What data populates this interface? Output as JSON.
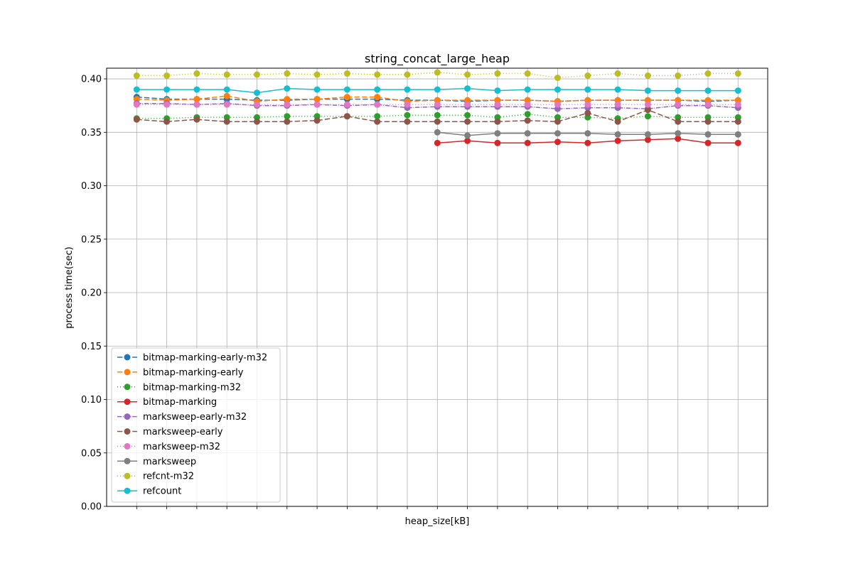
{
  "chart_data": {
    "type": "line",
    "title": "string_concat_large_heap",
    "xlabel": "heap_size[kB]",
    "ylabel": "process time(sec)",
    "ylim": [
      0,
      0.41
    ],
    "yticks": [
      "0.00",
      "0.05",
      "0.10",
      "0.15",
      "0.20",
      "0.25",
      "0.30",
      "0.35",
      "0.40"
    ],
    "x_count": 21,
    "x_tick_labels_visible": false,
    "grid": true,
    "legend_position": "lower-left",
    "series": [
      {
        "name": "bitmap-marking-early-m32",
        "color": "#1f77b4",
        "dash": "7.4,3.2",
        "values": [
          0.383,
          0.381,
          0.381,
          0.381,
          0.38,
          0.38,
          0.381,
          0.381,
          0.381,
          0.38,
          0.38,
          0.379,
          0.38,
          0.38,
          0.379,
          0.38,
          0.38,
          0.38,
          0.38,
          0.379,
          0.38
        ]
      },
      {
        "name": "bitmap-marking-early",
        "color": "#ff7f0e",
        "dash": "7.4,3.2",
        "values": [
          0.381,
          0.38,
          0.381,
          0.384,
          0.379,
          0.381,
          0.381,
          0.383,
          0.383,
          0.379,
          0.38,
          0.38,
          0.38,
          0.38,
          0.379,
          0.38,
          0.38,
          0.38,
          0.38,
          0.38,
          0.38
        ]
      },
      {
        "name": "bitmap-marking-m32",
        "color": "#2ca02c",
        "dash": "1,3",
        "values": [
          0.363,
          0.363,
          0.364,
          0.364,
          0.364,
          0.365,
          0.365,
          0.365,
          0.365,
          0.366,
          0.366,
          0.366,
          0.364,
          0.367,
          0.364,
          0.364,
          0.363,
          0.365,
          0.364,
          0.364,
          0.364
        ]
      },
      {
        "name": "bitmap-marking",
        "color": "#d62728",
        "dash": "",
        "start": 10,
        "values": [
          0.34,
          0.342,
          0.34,
          0.34,
          0.341,
          0.34,
          0.342,
          0.343,
          0.344,
          0.34,
          0.34
        ]
      },
      {
        "name": "marksweep-early-m32",
        "color": "#9467bd",
        "dash": "6.4,1.6,1,1.6",
        "values": [
          0.377,
          0.377,
          0.376,
          0.377,
          0.375,
          0.375,
          0.376,
          0.375,
          0.376,
          0.373,
          0.374,
          0.374,
          0.374,
          0.374,
          0.372,
          0.373,
          0.373,
          0.372,
          0.375,
          0.375,
          0.373
        ]
      },
      {
        "name": "marksweep-early",
        "color": "#8c564b",
        "dash": "7.4,3.2",
        "values": [
          0.362,
          0.36,
          0.362,
          0.36,
          0.36,
          0.36,
          0.361,
          0.365,
          0.36,
          0.36,
          0.36,
          0.36,
          0.36,
          0.361,
          0.36,
          0.368,
          0.36,
          0.371,
          0.36,
          0.36,
          0.36
        ]
      },
      {
        "name": "marksweep-m32",
        "color": "#e377c2",
        "dash": "1,3",
        "values": [
          0.376,
          0.376,
          0.376,
          0.376,
          0.376,
          0.376,
          0.376,
          0.376,
          0.376,
          0.376,
          0.376,
          0.376,
          0.376,
          0.376,
          0.376,
          0.376,
          0.376,
          0.376,
          0.376,
          0.376,
          0.376
        ]
      },
      {
        "name": "marksweep",
        "color": "#7f7f7f",
        "dash": "",
        "start": 10,
        "values": [
          0.35,
          0.347,
          0.349,
          0.349,
          0.349,
          0.349,
          0.348,
          0.348,
          0.349,
          0.348,
          0.348
        ]
      },
      {
        "name": "refcnt-m32",
        "color": "#bcbd22",
        "dash": "1,3",
        "values": [
          0.403,
          0.403,
          0.405,
          0.404,
          0.404,
          0.405,
          0.404,
          0.405,
          0.404,
          0.404,
          0.406,
          0.404,
          0.405,
          0.405,
          0.401,
          0.403,
          0.405,
          0.403,
          0.403,
          0.405,
          0.405
        ]
      },
      {
        "name": "refcount",
        "color": "#17becf",
        "dash": "",
        "values": [
          0.39,
          0.39,
          0.39,
          0.39,
          0.387,
          0.391,
          0.39,
          0.39,
          0.39,
          0.39,
          0.39,
          0.391,
          0.389,
          0.39,
          0.39,
          0.39,
          0.39,
          0.389,
          0.389,
          0.389,
          0.389
        ]
      }
    ]
  }
}
